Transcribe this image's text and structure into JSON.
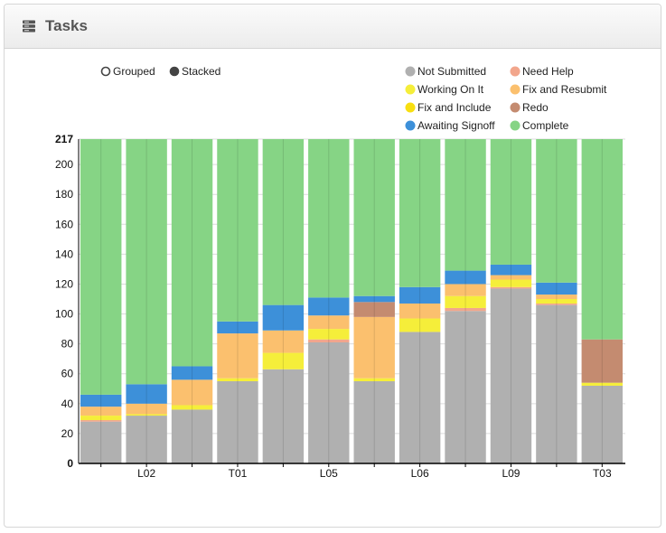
{
  "panel": {
    "title": "Tasks",
    "icon": "server-stack-icon"
  },
  "controls": {
    "options": [
      {
        "label": "Grouped",
        "selected": false
      },
      {
        "label": "Stacked",
        "selected": true
      }
    ]
  },
  "colors": {
    "background": "#ffffff",
    "grid": "#dcdcdc"
  },
  "chart_data": {
    "type": "bar",
    "stacked": true,
    "title": "",
    "xlabel": "",
    "ylabel": "",
    "ylim": [
      0,
      217
    ],
    "yticks": [
      0,
      20,
      40,
      60,
      80,
      100,
      120,
      140,
      160,
      180,
      200,
      217
    ],
    "legend_position": "top-right",
    "categories": [
      "",
      "L02",
      "",
      "T01",
      "",
      "L05",
      "",
      "L06",
      "",
      "L09",
      "",
      "T03"
    ],
    "series": [
      {
        "name": "Not Submitted",
        "color": "#b0b0b0",
        "values": [
          28,
          32,
          36,
          55,
          63,
          81,
          55,
          88,
          102,
          117,
          106,
          52
        ]
      },
      {
        "name": "Need Help",
        "color": "#f2a68c",
        "values": [
          1,
          0,
          0,
          0,
          0,
          2,
          0,
          0,
          2,
          1,
          1,
          0
        ]
      },
      {
        "name": "Working On It",
        "color": "#f5ee3a",
        "values": [
          3,
          1,
          3,
          2,
          11,
          7,
          2,
          9,
          8,
          5,
          3,
          2
        ]
      },
      {
        "name": "Fix and Resubmit",
        "color": "#fbc06e",
        "values": [
          6,
          7,
          17,
          30,
          15,
          9,
          41,
          10,
          8,
          3,
          3,
          0
        ]
      },
      {
        "name": "Fix and Include",
        "color": "#f8df10",
        "values": [
          0,
          0,
          0,
          0,
          0,
          0,
          0,
          0,
          0,
          0,
          0,
          0
        ]
      },
      {
        "name": "Redo",
        "color": "#c48b70",
        "values": [
          0,
          0,
          0,
          0,
          0,
          0,
          10,
          0,
          0,
          0,
          0,
          29
        ]
      },
      {
        "name": "Awaiting Signoff",
        "color": "#3d90d9",
        "values": [
          8,
          13,
          9,
          8,
          17,
          12,
          4,
          11,
          9,
          7,
          8,
          0
        ]
      },
      {
        "name": "Complete",
        "color": "#86d485",
        "values": [
          171,
          164,
          152,
          122,
          111,
          106,
          105,
          99,
          88,
          84,
          96,
          134
        ]
      }
    ]
  }
}
